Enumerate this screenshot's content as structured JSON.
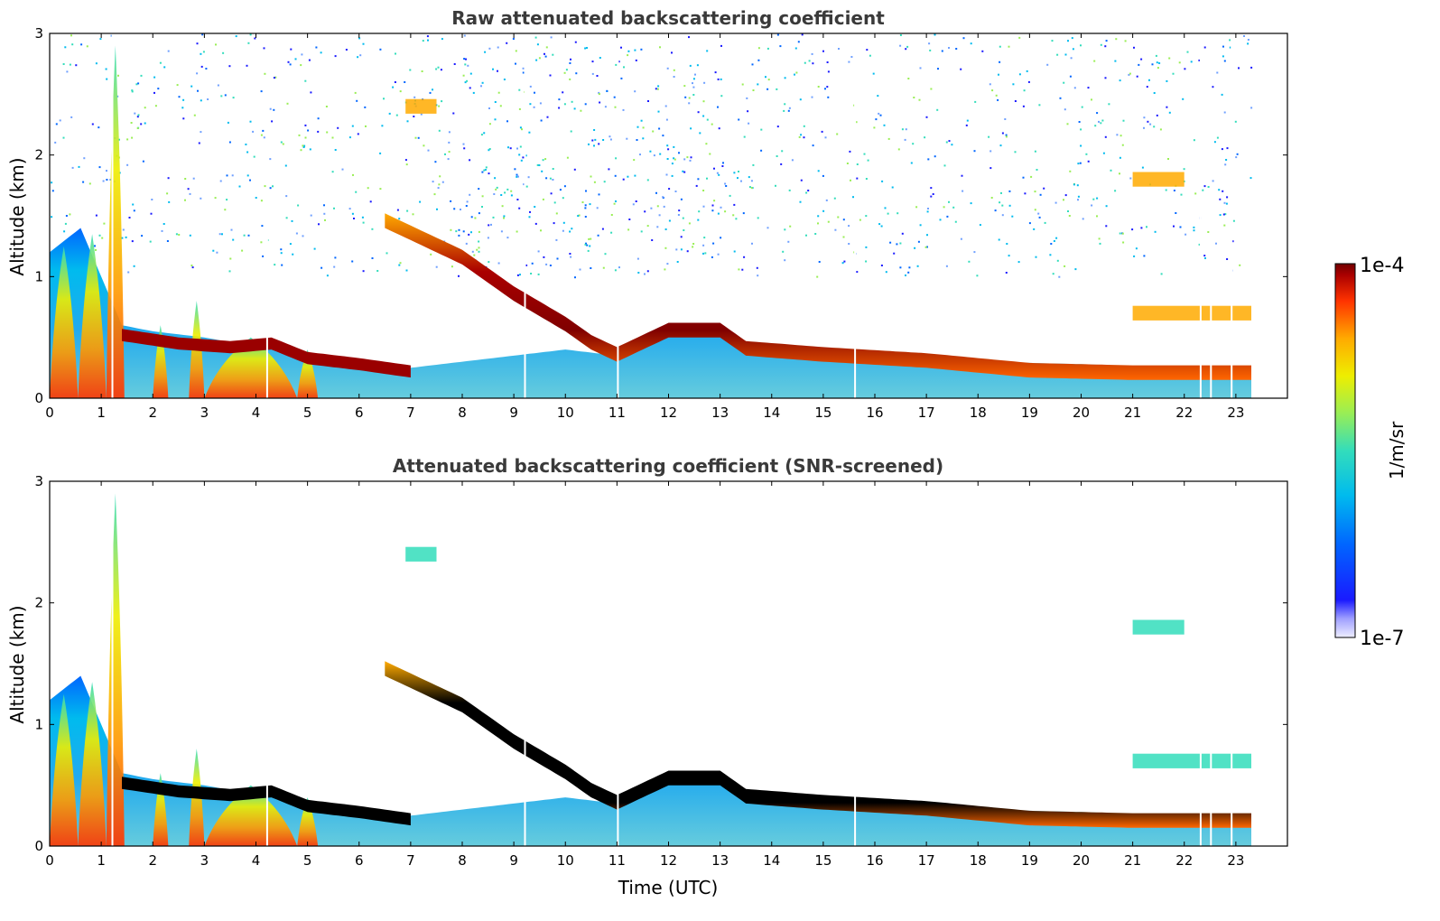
{
  "chart_data": [
    {
      "type": "heatmap",
      "title": "Raw attenuated backscattering coefficient",
      "xlabel": "",
      "ylabel": "Altitude (km)",
      "xlim": [
        0,
        24
      ],
      "ylim": [
        0,
        3
      ],
      "x_ticks": [
        "0",
        "1",
        "2",
        "3",
        "4",
        "5",
        "6",
        "7",
        "8",
        "9",
        "10",
        "11",
        "12",
        "13",
        "14",
        "15",
        "16",
        "17",
        "18",
        "19",
        "20",
        "21",
        "22",
        "23"
      ],
      "y_ticks": [
        "0",
        "1",
        "2",
        "3"
      ],
      "data_end_hour": 23.3,
      "boundary_layer_top_km": [
        [
          0,
          1.2
        ],
        [
          0.6,
          1.4
        ],
        [
          1.4,
          0.6
        ],
        [
          2.0,
          0.55
        ],
        [
          3.0,
          0.5
        ],
        [
          4.0,
          0.42
        ],
        [
          4.5,
          0.45
        ],
        [
          5.0,
          0.35
        ],
        [
          6.0,
          0.3
        ],
        [
          7.0,
          0.25
        ],
        [
          8.0,
          0.3
        ],
        [
          9.0,
          0.35
        ],
        [
          10.0,
          0.4
        ],
        [
          11.0,
          0.35
        ],
        [
          11.9,
          0.55
        ],
        [
          13.0,
          0.6
        ],
        [
          13.4,
          0.45
        ],
        [
          14.0,
          0.42
        ],
        [
          16.0,
          0.35
        ],
        [
          18.0,
          0.3
        ],
        [
          20.0,
          0.28
        ],
        [
          22.0,
          0.25
        ],
        [
          23.3,
          0.25
        ]
      ],
      "cloud_layer_km": [
        [
          6.5,
          1.45
        ],
        [
          7.5,
          1.25
        ],
        [
          8.0,
          1.15
        ],
        [
          9.0,
          0.85
        ],
        [
          10.0,
          0.6
        ],
        [
          10.5,
          0.45
        ],
        [
          11.0,
          0.35
        ],
        [
          12.0,
          0.55
        ],
        [
          13.0,
          0.55
        ],
        [
          13.5,
          0.4
        ],
        [
          15.0,
          0.35
        ],
        [
          17.0,
          0.3
        ],
        [
          19.0,
          0.22
        ],
        [
          21.0,
          0.2
        ],
        [
          23.3,
          0.2
        ]
      ],
      "elevated_layers": [
        {
          "x": [
            21.0,
            22.0
          ],
          "y": 1.8
        },
        {
          "x": [
            21.0,
            23.3
          ],
          "y": 0.7
        },
        {
          "x": [
            6.9,
            7.5
          ],
          "y": 2.4
        }
      ],
      "noise_region": {
        "x": [
          0,
          23.3
        ],
        "y": [
          1.0,
          3.0
        ]
      }
    },
    {
      "type": "heatmap",
      "title": "Attenuated backscattering coefficient (SNR-screened)",
      "xlabel": "Time (UTC)",
      "ylabel": "Altitude (km)",
      "xlim": [
        0,
        24
      ],
      "ylim": [
        0,
        3
      ],
      "x_ticks": [
        "0",
        "1",
        "2",
        "3",
        "4",
        "5",
        "6",
        "7",
        "8",
        "9",
        "10",
        "11",
        "12",
        "13",
        "14",
        "15",
        "16",
        "17",
        "18",
        "19",
        "20",
        "21",
        "22",
        "23"
      ],
      "y_ticks": [
        "0",
        "1",
        "2",
        "3"
      ],
      "data_end_hour": 23.3,
      "saturated_color": "#000000"
    }
  ],
  "colorbar": {
    "label": "1/m/sr",
    "max_label": "1e-4",
    "min_label": "1e-7",
    "scale": "log",
    "colors": [
      "#eeeeff",
      "#1a1aff",
      "#0066ff",
      "#00bbee",
      "#33ddbb",
      "#99ee55",
      "#eeee00",
      "#ffaa00",
      "#ff3300",
      "#aa0000",
      "#700000"
    ]
  }
}
